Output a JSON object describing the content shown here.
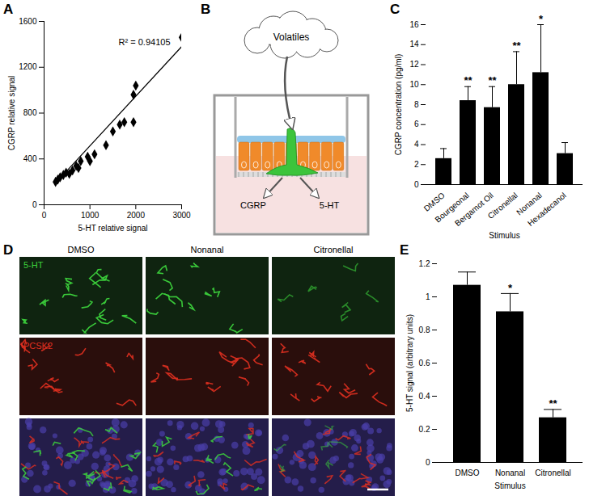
{
  "chart_data": [
    {
      "type": "scatter",
      "x_label": "5-HT relative signal",
      "y_label": "CGRP relative signal",
      "x": [
        250,
        300,
        350,
        420,
        480,
        550,
        620,
        700,
        750,
        800,
        950,
        1000,
        1100,
        1350,
        1500,
        1650,
        1750,
        1950,
        1950,
        2000,
        3000
      ],
      "values": [
        200,
        220,
        240,
        260,
        280,
        270,
        300,
        340,
        320,
        380,
        420,
        380,
        440,
        520,
        640,
        700,
        720,
        720,
        960,
        1040,
        1460
      ],
      "color": "#000000",
      "marker": "diamond",
      "xlim": [
        0,
        3000
      ],
      "xticks": [
        0,
        1000,
        2000,
        3000
      ],
      "ylim": [
        0,
        1600
      ],
      "yticks": [
        0,
        400,
        800,
        1200,
        1600
      ],
      "annotations": [
        "R² = 0.94105"
      ],
      "trendline": {
        "x": [
          250,
          3000
        ],
        "y": [
          190,
          1380
        ]
      }
    },
    {
      "type": "bar",
      "x_label": "Stimulus",
      "y_label": "CGRP concentration (pg/ml)",
      "categories": [
        "DMSO",
        "Bourgeonal",
        "Bergamot Oil",
        "Citronellal",
        "Nonanal",
        "Hexadecanol"
      ],
      "values": [
        2.6,
        8.4,
        7.7,
        10.0,
        11.2,
        3.1
      ],
      "errors": [
        1.0,
        1.4,
        2.1,
        3.3,
        4.8,
        1.1
      ],
      "significance": [
        null,
        "**",
        "**",
        "**",
        "*",
        null
      ],
      "color": "#000000",
      "ylim": [
        0,
        16
      ],
      "yticks": [
        0,
        2,
        4,
        6,
        8,
        10,
        12,
        14,
        16
      ]
    },
    {
      "type": "bar",
      "x_label": "Stimulus",
      "y_label": "5-HT signal (arbitrary units)",
      "categories": [
        "DMSO",
        "Nonanal",
        "Citronellal"
      ],
      "values": [
        1.07,
        0.91,
        0.27
      ],
      "errors": [
        0.08,
        0.11,
        0.05
      ],
      "significance": [
        null,
        "*",
        "**"
      ],
      "color": "#000000",
      "ylim": [
        0,
        1.2
      ],
      "yticks": [
        0,
        0.2,
        0.4,
        0.6,
        0.8,
        1,
        1.2
      ]
    }
  ],
  "figure": {
    "panel_labels": [
      "A",
      "B",
      "C",
      "D",
      "E"
    ],
    "diagram": {
      "source": "Volatiles",
      "outputs": [
        "CGRP",
        "5-HT"
      ]
    },
    "micrographs": {
      "columns": [
        "DMSO",
        "Nonanal",
        "Citronellal"
      ],
      "channels": [
        {
          "name": "5-HT",
          "color": "#3cd23c"
        },
        {
          "name": "PCSK2",
          "color": "#e03020"
        }
      ]
    }
  }
}
